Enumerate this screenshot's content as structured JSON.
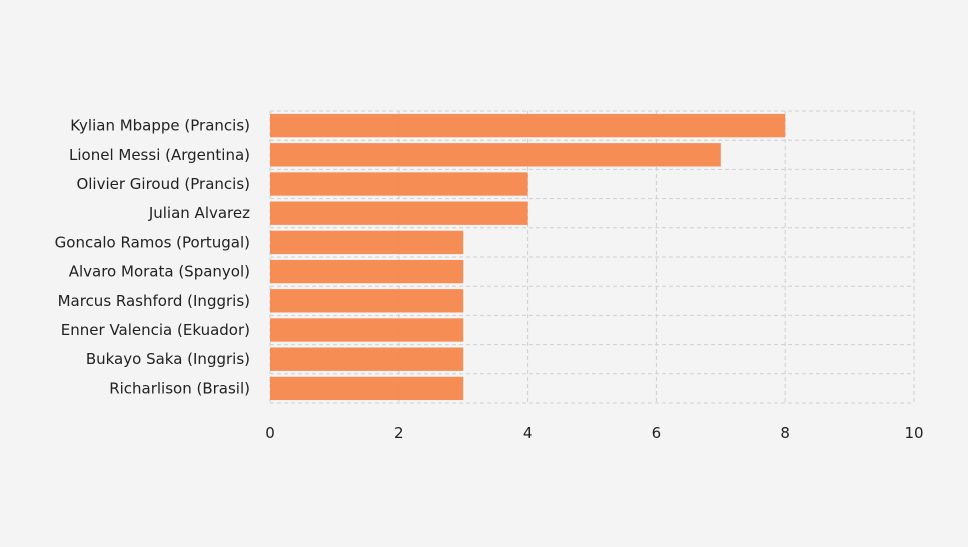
{
  "chart_data": {
    "type": "bar",
    "orientation": "horizontal",
    "categories": [
      "Kylian Mbappe (Prancis)",
      "Lionel Messi (Argentina)",
      "Olivier Giroud (Prancis)",
      "Julian Alvarez",
      "Goncalo Ramos (Portugal)",
      "Alvaro Morata (Spanyol)",
      "Marcus Rashford (Inggris)",
      "Enner Valencia (Ekuador)",
      "Bukayo Saka (Inggris)",
      "Richarlison (Brasil)"
    ],
    "values": [
      8,
      7,
      4,
      4,
      3,
      3,
      3,
      3,
      3,
      3
    ],
    "xlim": [
      0,
      10
    ],
    "xticks": [
      0,
      2,
      4,
      6,
      8,
      10
    ],
    "grid": true,
    "bar_color": "#f4874b",
    "title": "",
    "xlabel": "",
    "ylabel": ""
  }
}
